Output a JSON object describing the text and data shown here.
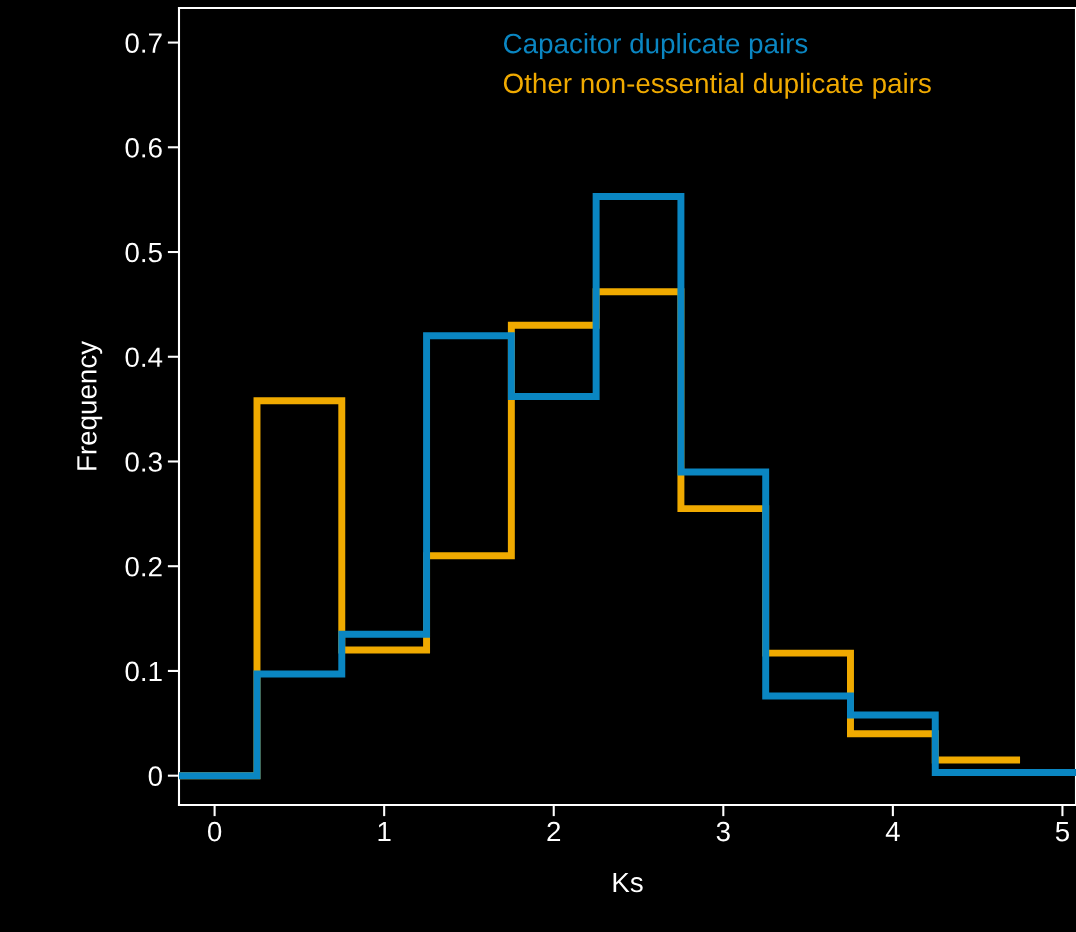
{
  "chart_data": {
    "type": "histogram",
    "xlabel": "Ks",
    "ylabel": "Frequency",
    "bins": [
      -0.21,
      0.25,
      0.75,
      1.25,
      1.75,
      2.25,
      2.75,
      3.25,
      3.75,
      4.25,
      4.75,
      5.08
    ],
    "series": [
      {
        "name": "Capacitor duplicate pairs",
        "color": "#0a86c2",
        "values": [
          0,
          0.097,
          0.135,
          0.42,
          0.362,
          0.553,
          0.29,
          0.076,
          0.058,
          0.003,
          0.003
        ]
      },
      {
        "name": "Other non-essential duplicate pairs",
        "color": "#f0aa00",
        "bins": [
          -0.21,
          0.25,
          0.75,
          1.25,
          1.75,
          2.25,
          2.75,
          3.25,
          3.75,
          4.25,
          4.75
        ],
        "values": [
          0,
          0.358,
          0.12,
          0.21,
          0.43,
          0.462,
          0.255,
          0.117,
          0.04,
          0.015
        ]
      }
    ],
    "xlim": [
      -0.21,
      5.08
    ],
    "ylim": [
      -0.028,
      0.733
    ],
    "xticks": [
      0,
      1,
      2,
      3,
      4,
      5
    ],
    "yticks": [
      0,
      0.1,
      0.2,
      0.3,
      0.4,
      0.5,
      0.6,
      0.7
    ],
    "legend": "top",
    "grid": false
  }
}
